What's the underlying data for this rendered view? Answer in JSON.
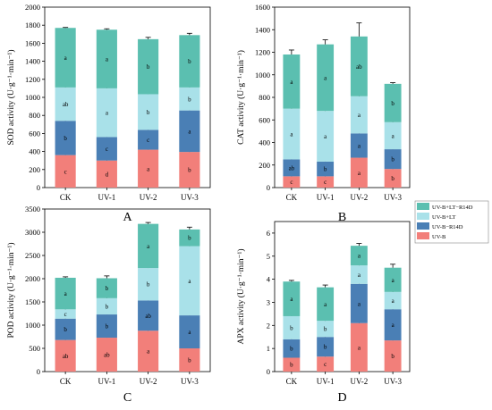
{
  "legend": {
    "items": [
      {
        "label": "UV-B+LT−R14D",
        "color": "#5bbfb0"
      },
      {
        "label": "UV-B+LT",
        "color": "#a9e1e9"
      },
      {
        "label": "UV-B−R14D",
        "color": "#4a7fb5"
      },
      {
        "label": "UV-B",
        "color": "#f27f7a"
      }
    ]
  },
  "chart_data": [
    {
      "type": "bar",
      "stacked": true,
      "panel": "A",
      "xlabel": "",
      "ylabel": "SOD activity (U·g⁻¹·min⁻¹)",
      "ylim": [
        0,
        2000
      ],
      "yticks": [
        0,
        200,
        400,
        600,
        800,
        1000,
        1200,
        1400,
        1600,
        1800,
        2000
      ],
      "categories": [
        "CK",
        "UV-1",
        "UV-2",
        "UV-3"
      ],
      "series": [
        {
          "name": "UV-B",
          "values": [
            360,
            300,
            420,
            395
          ],
          "errors": [
            10,
            10,
            15,
            10
          ],
          "labels": [
            "c",
            "d",
            "a",
            "b"
          ]
        },
        {
          "name": "UV-B−R14D",
          "values": [
            380,
            260,
            220,
            460
          ],
          "errors": [
            20,
            20,
            30,
            10
          ],
          "labels": [
            "b",
            "c",
            "c",
            "a"
          ]
        },
        {
          "name": "UV-B+LT",
          "values": [
            370,
            540,
            395,
            255
          ],
          "errors": [
            110,
            10,
            80,
            10
          ],
          "labels": [
            "ab",
            "a",
            "b",
            "b"
          ]
        },
        {
          "name": "UV-B+LT−R14D",
          "values": [
            660,
            650,
            610,
            580
          ],
          "errors": [
            5,
            10,
            20,
            20
          ],
          "labels": [
            "a",
            "a",
            "b",
            "b"
          ]
        }
      ]
    },
    {
      "type": "bar",
      "stacked": true,
      "panel": "B",
      "xlabel": "",
      "ylabel": "CAT activity (U·g⁻¹·min⁻¹)",
      "ylim": [
        0,
        1600
      ],
      "yticks": [
        0,
        200,
        400,
        600,
        800,
        1000,
        1200,
        1400,
        1600
      ],
      "categories": [
        "CK",
        "UV-1",
        "UV-2",
        "UV-3"
      ],
      "series": [
        {
          "name": "UV-B",
          "values": [
            100,
            100,
            265,
            165
          ],
          "errors": [
            15,
            15,
            25,
            20
          ],
          "labels": [
            "c",
            "c",
            "a",
            "b"
          ]
        },
        {
          "name": "UV-B−R14D",
          "values": [
            150,
            130,
            215,
            175
          ],
          "errors": [
            15,
            10,
            30,
            20
          ],
          "labels": [
            "ab",
            "b",
            "a",
            "b"
          ]
        },
        {
          "name": "UV-B+LT",
          "values": [
            450,
            450,
            330,
            240
          ],
          "errors": [
            100,
            40,
            60,
            10
          ],
          "labels": [
            "a",
            "a",
            "a",
            "a"
          ]
        },
        {
          "name": "UV-B+LT−R14D",
          "values": [
            480,
            590,
            530,
            340
          ],
          "errors": [
            40,
            40,
            120,
            10
          ],
          "labels": [
            "a",
            "a",
            "ab",
            "b"
          ]
        }
      ]
    },
    {
      "type": "bar",
      "stacked": true,
      "panel": "C",
      "xlabel": "",
      "ylabel": "POD activity (U·g⁻¹·min⁻¹)",
      "ylim": [
        0,
        3500
      ],
      "yticks": [
        0,
        500,
        1000,
        1500,
        2000,
        2500,
        3000,
        3500
      ],
      "categories": [
        "CK",
        "UV-1",
        "UV-2",
        "UV-3"
      ],
      "series": [
        {
          "name": "UV-B",
          "values": [
            680,
            730,
            880,
            500
          ],
          "errors": [
            50,
            50,
            50,
            200
          ],
          "labels": [
            "ab",
            "ab",
            "a",
            "b"
          ]
        },
        {
          "name": "UV-B−R14D",
          "values": [
            460,
            500,
            650,
            710
          ],
          "errors": [
            60,
            100,
            100,
            100
          ],
          "labels": [
            "b",
            "b",
            "ab",
            "a"
          ]
        },
        {
          "name": "UV-B+LT",
          "values": [
            200,
            350,
            700,
            1490
          ],
          "errors": [
            20,
            50,
            80,
            70
          ],
          "labels": [
            "c",
            "b",
            "b",
            "a"
          ]
        },
        {
          "name": "UV-B+LT−R14D",
          "values": [
            680,
            430,
            950,
            360
          ],
          "errors": [
            20,
            50,
            30,
            50
          ],
          "labels": [
            "a",
            "b",
            "a",
            "b"
          ]
        }
      ]
    },
    {
      "type": "bar",
      "stacked": true,
      "panel": "D",
      "xlabel": "",
      "ylabel": "APX activity (U·g⁻¹·min⁻¹)",
      "ylim": [
        0,
        6.5
      ],
      "yticks": [
        0,
        1,
        2,
        3,
        4,
        5,
        6
      ],
      "categories": [
        "CK",
        "UV-1",
        "UV-2",
        "UV-3"
      ],
      "series": [
        {
          "name": "UV-B",
          "values": [
            0.6,
            0.65,
            2.1,
            1.35
          ],
          "errors": [
            0.05,
            0.05,
            0.05,
            0.05
          ],
          "labels": [
            "b",
            "c",
            "a",
            "b"
          ]
        },
        {
          "name": "UV-B−R14D",
          "values": [
            0.8,
            0.85,
            1.7,
            1.35
          ],
          "errors": [
            0.05,
            0.05,
            0.05,
            0.1
          ],
          "labels": [
            "b",
            "b",
            "a",
            "a"
          ]
        },
        {
          "name": "UV-B+LT",
          "values": [
            1.0,
            0.7,
            0.8,
            0.75
          ],
          "errors": [
            0.05,
            0.1,
            0.1,
            0.1
          ],
          "labels": [
            "b",
            "b",
            "a",
            "a"
          ]
        },
        {
          "name": "UV-B+LT−R14D",
          "values": [
            1.5,
            1.45,
            0.85,
            1.05
          ],
          "errors": [
            0.05,
            0.1,
            0.1,
            0.15
          ],
          "labels": [
            "a",
            "a",
            "a",
            "a"
          ]
        }
      ]
    }
  ]
}
